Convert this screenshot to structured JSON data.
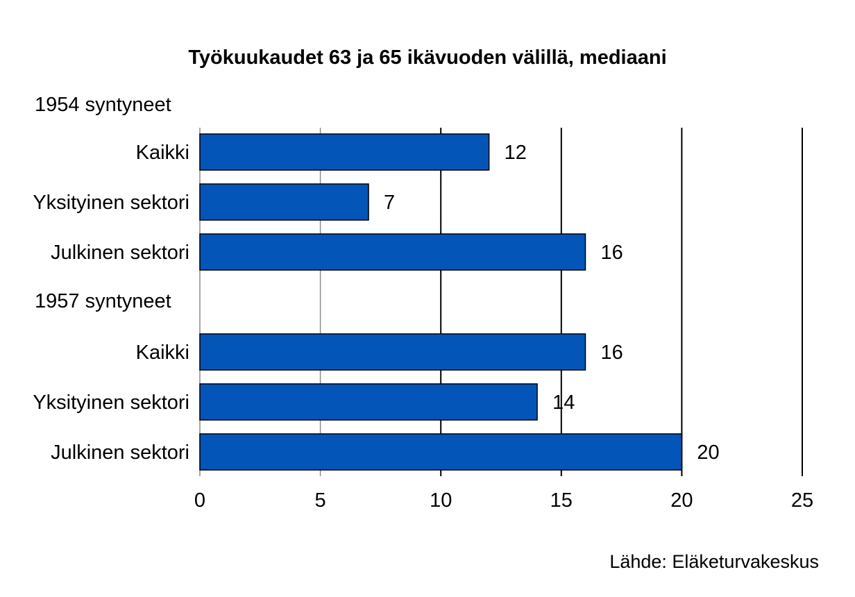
{
  "chart_data": {
    "type": "bar",
    "orientation": "horizontal",
    "title": "Työkuukaudet 63 ja 65 ikävuoden välillä, mediaani",
    "source": "Lähde: Eläketurvakeskus",
    "xlim": [
      0,
      25
    ],
    "xticks": [
      0,
      5,
      10,
      15,
      20,
      25
    ],
    "grid": true,
    "bar_color": "#0455B8",
    "groups": [
      {
        "label": "1954 syntyneet",
        "categories": [
          "Kaikki",
          "Yksityinen sektori",
          "Julkinen sektori"
        ],
        "values": [
          12,
          7,
          16
        ]
      },
      {
        "label": "1957 syntyneet",
        "categories": [
          "Kaikki",
          "Yksityinen sektori",
          "Julkinen sektori"
        ],
        "values": [
          16,
          14,
          20
        ]
      }
    ]
  }
}
